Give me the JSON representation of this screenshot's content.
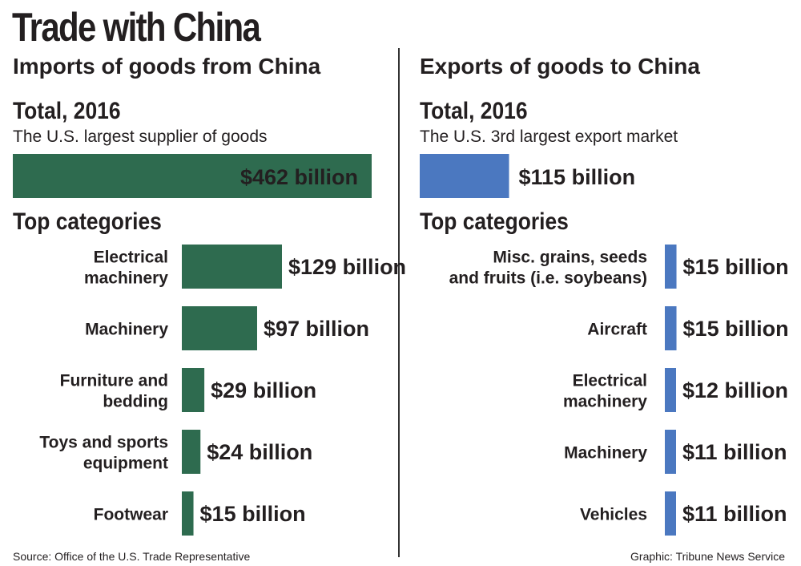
{
  "title": "Trade with China",
  "source": "Source: Office of the U.S. Trade Representative",
  "credit": "Graphic: Tribune News Service",
  "colors": {
    "imports": "#2e6b4f",
    "exports": "#4b78c0",
    "text": "#231f20",
    "total_label_on_bar": "#ffffff"
  },
  "chart_data": [
    {
      "type": "bar",
      "title": "Imports of goods from China",
      "total": {
        "heading": "Total, 2016",
        "subtitle": "The U.S. largest supplier of goods",
        "value": 462,
        "label": "$462 billion"
      },
      "categories_heading": "Top categories",
      "categories": [
        [
          "Electrical",
          "machinery"
        ],
        [
          "Machinery"
        ],
        [
          "Furniture and",
          "bedding"
        ],
        [
          "Toys and sports",
          "equipment"
        ],
        [
          "Footwear"
        ]
      ],
      "values": [
        129,
        97,
        29,
        24,
        15
      ],
      "value_labels": [
        "$129 billion",
        "$97 billion",
        "$29 billion",
        "$24 billion",
        "$15 billion"
      ],
      "unit": "billion dollars"
    },
    {
      "type": "bar",
      "title": "Exports of goods to China",
      "total": {
        "heading": "Total, 2016",
        "subtitle": "The U.S. 3rd largest export market",
        "value": 115,
        "label": "$115 billion"
      },
      "categories_heading": "Top categories",
      "categories": [
        [
          "Misc. grains, seeds",
          "and fruits (i.e. soybeans)"
        ],
        [
          "Aircraft"
        ],
        [
          "Electrical",
          "machinery"
        ],
        [
          "Machinery"
        ],
        [
          "Vehicles"
        ]
      ],
      "values": [
        15,
        15,
        12,
        11,
        11
      ],
      "value_labels": [
        "$15 billion",
        "$15 billion",
        "$12 billion",
        "$11 billion",
        "$11 billion"
      ],
      "unit": "billion dollars"
    }
  ]
}
